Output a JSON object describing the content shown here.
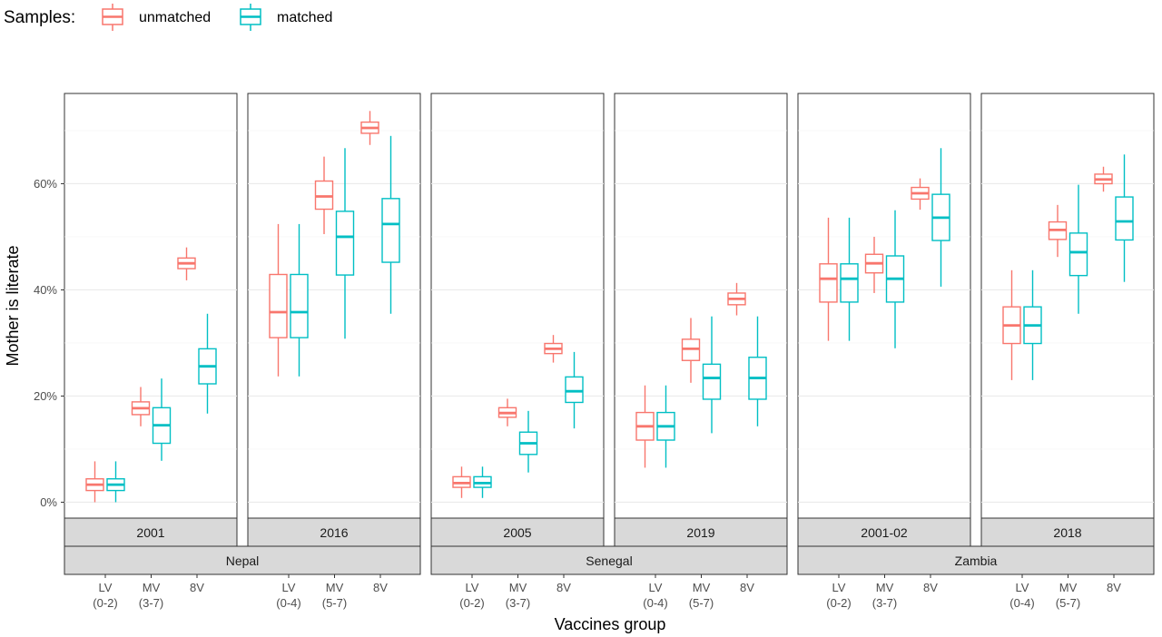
{
  "legend": {
    "title": "Samples:",
    "items": [
      {
        "label": "unmatched",
        "color": "#F8766D"
      },
      {
        "label": "matched",
        "color": "#00BFC4"
      }
    ]
  },
  "chart_data": {
    "type": "boxplot",
    "xlabel": "Vaccines group",
    "ylabel": "Mother is literate",
    "ylim": [
      -0.03,
      0.77
    ],
    "yticks": [
      0,
      0.2,
      0.4,
      0.6
    ],
    "ytick_labels": [
      "0%",
      "20%",
      "40%",
      "60%"
    ],
    "countries": [
      {
        "name": "Nepal",
        "surveys": [
          {
            "year": "2001",
            "groups": [
              {
                "label": [
                  "LV",
                  "(0-2)"
                ],
                "unmatched": {
                  "min": 0.0,
                  "q1": 0.022,
                  "median": 0.033,
                  "q3": 0.044,
                  "max": 0.077
                },
                "matched": {
                  "min": 0.0,
                  "q1": 0.022,
                  "median": 0.033,
                  "q3": 0.044,
                  "max": 0.077
                }
              },
              {
                "label": [
                  "MV",
                  "(3-7)"
                ],
                "unmatched": {
                  "min": 0.143,
                  "q1": 0.165,
                  "median": 0.177,
                  "q3": 0.189,
                  "max": 0.217
                },
                "matched": {
                  "min": 0.078,
                  "q1": 0.111,
                  "median": 0.145,
                  "q3": 0.178,
                  "max": 0.233
                }
              },
              {
                "label": [
                  "8V"
                ],
                "unmatched": {
                  "min": 0.418,
                  "q1": 0.44,
                  "median": 0.45,
                  "q3": 0.46,
                  "max": 0.48
                },
                "matched": {
                  "min": 0.167,
                  "q1": 0.223,
                  "median": 0.256,
                  "q3": 0.289,
                  "max": 0.355
                }
              }
            ]
          },
          {
            "year": "2016",
            "groups": [
              {
                "label": [
                  "LV",
                  "(0-4)"
                ],
                "unmatched": {
                  "min": 0.237,
                  "q1": 0.31,
                  "median": 0.358,
                  "q3": 0.429,
                  "max": 0.524
                },
                "matched": {
                  "min": 0.237,
                  "q1": 0.31,
                  "median": 0.358,
                  "q3": 0.429,
                  "max": 0.524
                }
              },
              {
                "label": [
                  "MV",
                  "(5-7)"
                ],
                "unmatched": {
                  "min": 0.505,
                  "q1": 0.552,
                  "median": 0.576,
                  "q3": 0.605,
                  "max": 0.651
                },
                "matched": {
                  "min": 0.308,
                  "q1": 0.428,
                  "median": 0.5,
                  "q3": 0.548,
                  "max": 0.667
                }
              },
              {
                "label": [
                  "8V"
                ],
                "unmatched": {
                  "min": 0.673,
                  "q1": 0.695,
                  "median": 0.705,
                  "q3": 0.716,
                  "max": 0.737
                },
                "matched": {
                  "min": 0.355,
                  "q1": 0.452,
                  "median": 0.524,
                  "q3": 0.572,
                  "max": 0.69
                }
              }
            ]
          }
        ]
      },
      {
        "name": "Senegal",
        "surveys": [
          {
            "year": "2005",
            "groups": [
              {
                "label": [
                  "LV",
                  "(0-2)"
                ],
                "unmatched": {
                  "min": 0.008,
                  "q1": 0.028,
                  "median": 0.036,
                  "q3": 0.048,
                  "max": 0.067
                },
                "matched": {
                  "min": 0.008,
                  "q1": 0.028,
                  "median": 0.036,
                  "q3": 0.048,
                  "max": 0.067
                }
              },
              {
                "label": [
                  "MV",
                  "(3-7)"
                ],
                "unmatched": {
                  "min": 0.143,
                  "q1": 0.16,
                  "median": 0.168,
                  "q3": 0.178,
                  "max": 0.195
                },
                "matched": {
                  "min": 0.056,
                  "q1": 0.09,
                  "median": 0.111,
                  "q3": 0.132,
                  "max": 0.172
                }
              },
              {
                "label": [
                  "8V"
                ],
                "unmatched": {
                  "min": 0.263,
                  "q1": 0.28,
                  "median": 0.289,
                  "q3": 0.299,
                  "max": 0.315
                },
                "matched": {
                  "min": 0.139,
                  "q1": 0.188,
                  "median": 0.209,
                  "q3": 0.236,
                  "max": 0.283
                }
              }
            ]
          },
          {
            "year": "2019",
            "groups": [
              {
                "label": [
                  "LV",
                  "(0-4)"
                ],
                "unmatched": {
                  "min": 0.065,
                  "q1": 0.117,
                  "median": 0.143,
                  "q3": 0.169,
                  "max": 0.22
                },
                "matched": {
                  "min": 0.065,
                  "q1": 0.117,
                  "median": 0.143,
                  "q3": 0.169,
                  "max": 0.22
                }
              },
              {
                "label": [
                  "MV",
                  "(5-7)"
                ],
                "unmatched": {
                  "min": 0.225,
                  "q1": 0.267,
                  "median": 0.289,
                  "q3": 0.307,
                  "max": 0.347
                },
                "matched": {
                  "min": 0.13,
                  "q1": 0.194,
                  "median": 0.234,
                  "q3": 0.26,
                  "max": 0.35
                }
              },
              {
                "label": [
                  "8V"
                ],
                "unmatched": {
                  "min": 0.352,
                  "q1": 0.372,
                  "median": 0.383,
                  "q3": 0.394,
                  "max": 0.413
                },
                "matched": {
                  "min": 0.143,
                  "q1": 0.194,
                  "median": 0.234,
                  "q3": 0.273,
                  "max": 0.35
                }
              }
            ]
          }
        ]
      },
      {
        "name": "Zambia",
        "surveys": [
          {
            "year": "2001-02",
            "groups": [
              {
                "label": [
                  "LV",
                  "(0-2)"
                ],
                "unmatched": {
                  "min": 0.304,
                  "q1": 0.377,
                  "median": 0.421,
                  "q3": 0.449,
                  "max": 0.536
                },
                "matched": {
                  "min": 0.304,
                  "q1": 0.377,
                  "median": 0.421,
                  "q3": 0.449,
                  "max": 0.536
                }
              },
              {
                "label": [
                  "MV",
                  "(3-7)"
                ],
                "unmatched": {
                  "min": 0.394,
                  "q1": 0.432,
                  "median": 0.45,
                  "q3": 0.467,
                  "max": 0.5
                },
                "matched": {
                  "min": 0.29,
                  "q1": 0.377,
                  "median": 0.421,
                  "q3": 0.464,
                  "max": 0.55
                }
              },
              {
                "label": [
                  "8V"
                ],
                "unmatched": {
                  "min": 0.551,
                  "q1": 0.571,
                  "median": 0.582,
                  "q3": 0.593,
                  "max": 0.61
                },
                "matched": {
                  "min": 0.406,
                  "q1": 0.493,
                  "median": 0.536,
                  "q3": 0.58,
                  "max": 0.667
                }
              }
            ]
          },
          {
            "year": "2018",
            "groups": [
              {
                "label": [
                  "LV",
                  "(0-4)"
                ],
                "unmatched": {
                  "min": 0.23,
                  "q1": 0.299,
                  "median": 0.333,
                  "q3": 0.368,
                  "max": 0.437
                },
                "matched": {
                  "min": 0.23,
                  "q1": 0.299,
                  "median": 0.333,
                  "q3": 0.368,
                  "max": 0.437
                }
              },
              {
                "label": [
                  "MV",
                  "(5-7)"
                ],
                "unmatched": {
                  "min": 0.462,
                  "q1": 0.495,
                  "median": 0.513,
                  "q3": 0.528,
                  "max": 0.56
                },
                "matched": {
                  "min": 0.355,
                  "q1": 0.427,
                  "median": 0.471,
                  "q3": 0.507,
                  "max": 0.598
                }
              },
              {
                "label": [
                  "8V"
                ],
                "unmatched": {
                  "min": 0.585,
                  "q1": 0.6,
                  "median": 0.608,
                  "q3": 0.618,
                  "max": 0.632
                },
                "matched": {
                  "min": 0.415,
                  "q1": 0.494,
                  "median": 0.529,
                  "q3": 0.575,
                  "max": 0.655
                }
              }
            ]
          }
        ]
      }
    ]
  }
}
